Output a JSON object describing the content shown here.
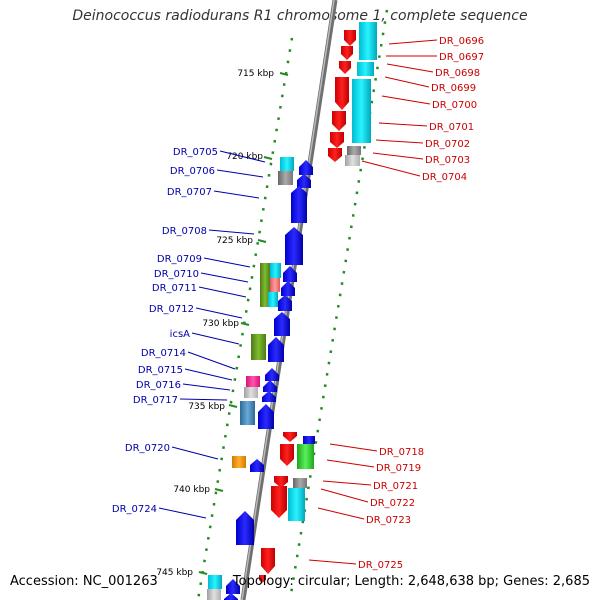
{
  "title": "Deinococcus radiodurans R1 chromosome 1, complete sequence",
  "accession": "Accession: NC_001263",
  "summary": "Topology: circular; Length: 2,648,638 bp; Genes: 2,685",
  "colors": {
    "forward_gene": "#0000ff",
    "reverse_gene": "#ff0000",
    "forward_label": "#0000aa",
    "reverse_label": "#cc0000",
    "backbone": "#808080",
    "ruler": "#228b22"
  },
  "scale_ticks": [
    "715 kbp",
    "720 kbp",
    "725 kbp",
    "730 kbp",
    "735 kbp",
    "740 kbp",
    "745 kbp"
  ],
  "genes_left": [
    {
      "name": "DR_0705"
    },
    {
      "name": "DR_0706"
    },
    {
      "name": "DR_0707"
    },
    {
      "name": "DR_0708"
    },
    {
      "name": "DR_0709"
    },
    {
      "name": "DR_0710"
    },
    {
      "name": "DR_0711"
    },
    {
      "name": "DR_0712"
    },
    {
      "name": "icsA"
    },
    {
      "name": "DR_0714"
    },
    {
      "name": "DR_0715"
    },
    {
      "name": "DR_0716"
    },
    {
      "name": "DR_0717"
    },
    {
      "name": "DR_0720"
    },
    {
      "name": "DR_0724"
    }
  ],
  "genes_right": [
    {
      "name": "DR_0696"
    },
    {
      "name": "DR_0697"
    },
    {
      "name": "DR_0698"
    },
    {
      "name": "DR_0699"
    },
    {
      "name": "DR_0700"
    },
    {
      "name": "DR_0701"
    },
    {
      "name": "DR_0702"
    },
    {
      "name": "DR_0703"
    },
    {
      "name": "DR_0704"
    },
    {
      "name": "DR_0718"
    },
    {
      "name": "DR_0719"
    },
    {
      "name": "DR_0721"
    },
    {
      "name": "DR_0722"
    },
    {
      "name": "DR_0723"
    },
    {
      "name": "DR_0725"
    }
  ]
}
